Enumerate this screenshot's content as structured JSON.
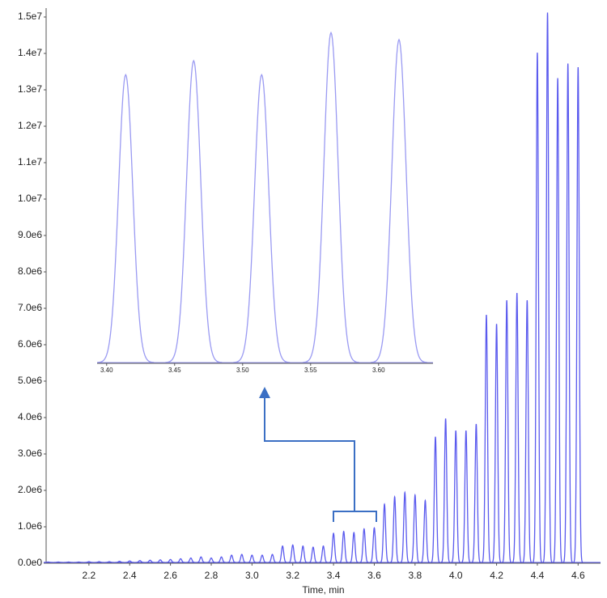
{
  "chart_data": [
    {
      "type": "peaks",
      "x_label": "Time, min",
      "color": "#5a5aee",
      "xlim": [
        1.99,
        4.71
      ],
      "ylim": [
        0,
        15200000
      ],
      "xticks": [
        2.2,
        2.4,
        2.6,
        2.8,
        {
          "value": 3.0,
          "label": "3.0"
        },
        3.2,
        3.4,
        3.6,
        3.8,
        {
          "value": 4.0,
          "label": "4.0"
        },
        4.2,
        4.4,
        4.6
      ],
      "yticks": [
        {
          "value": 0,
          "label": "0.0e0"
        },
        {
          "value": 1000000,
          "label": "1.0e6"
        },
        {
          "value": 2000000,
          "label": "2.0e6"
        },
        {
          "value": 3000000,
          "label": "3.0e6"
        },
        {
          "value": 4000000,
          "label": "4.0e6"
        },
        {
          "value": 5000000,
          "label": "5.0e6"
        },
        {
          "value": 6000000,
          "label": "6.0e6"
        },
        {
          "value": 7000000,
          "label": "7.0e6"
        },
        {
          "value": 8000000,
          "label": "8.0e6"
        },
        {
          "value": 9000000,
          "label": "9.0e6"
        },
        {
          "value": 10000000,
          "label": "1.0e7"
        },
        {
          "value": 11000000,
          "label": "1.1e7"
        },
        {
          "value": 12000000,
          "label": "1.2e7"
        },
        {
          "value": 13000000,
          "label": "1.3e7"
        },
        {
          "value": 14000000,
          "label": "1.4e7"
        },
        {
          "value": 15000000,
          "label": "1.5e7"
        }
      ],
      "x": [
        2.0,
        2.05,
        2.1,
        2.15,
        2.2,
        2.25,
        2.3,
        2.35,
        2.4,
        2.45,
        2.5,
        2.55,
        2.6,
        2.65,
        2.7,
        2.75,
        2.8,
        2.85,
        2.9,
        2.95,
        3.0,
        3.05,
        3.1,
        3.15,
        3.2,
        3.25,
        3.3,
        3.35,
        3.4,
        3.45,
        3.5,
        3.55,
        3.6,
        3.65,
        3.7,
        3.75,
        3.8,
        3.85,
        3.9,
        3.95,
        4.0,
        4.05,
        4.1,
        4.15,
        4.2,
        4.25,
        4.3,
        4.35,
        4.4,
        4.45,
        4.5,
        4.55,
        4.6
      ],
      "values": [
        10000,
        10000,
        10000,
        10000,
        20000,
        20000,
        20000,
        30000,
        40000,
        50000,
        60000,
        70000,
        80000,
        100000,
        120000,
        150000,
        120000,
        150000,
        200000,
        220000,
        200000,
        200000,
        220000,
        450000,
        480000,
        450000,
        420000,
        450000,
        800000,
        850000,
        820000,
        920000,
        950000,
        1600000,
        1800000,
        1920000,
        1850000,
        1700000,
        3450000,
        3950000,
        3620000,
        3620000,
        3800000,
        6800000,
        6550000,
        7200000,
        7400000,
        7200000,
        14000000,
        15100000,
        13300000,
        13700000,
        13600000
      ]
    },
    {
      "type": "peaks",
      "color": "#9a9af2",
      "xlim": [
        3.393,
        3.64
      ],
      "ylim": [
        0,
        950000
      ],
      "xticks": [
        {
          "value": 3.4,
          "label": "3.40"
        },
        3.45,
        {
          "value": 3.5,
          "label": "3.50"
        },
        3.55,
        {
          "value": 3.6,
          "label": "3.60"
        }
      ],
      "x": [
        3.414,
        3.464,
        3.514,
        3.565,
        3.615
      ],
      "values": [
        820000,
        860000,
        820000,
        940000,
        920000
      ]
    }
  ]
}
